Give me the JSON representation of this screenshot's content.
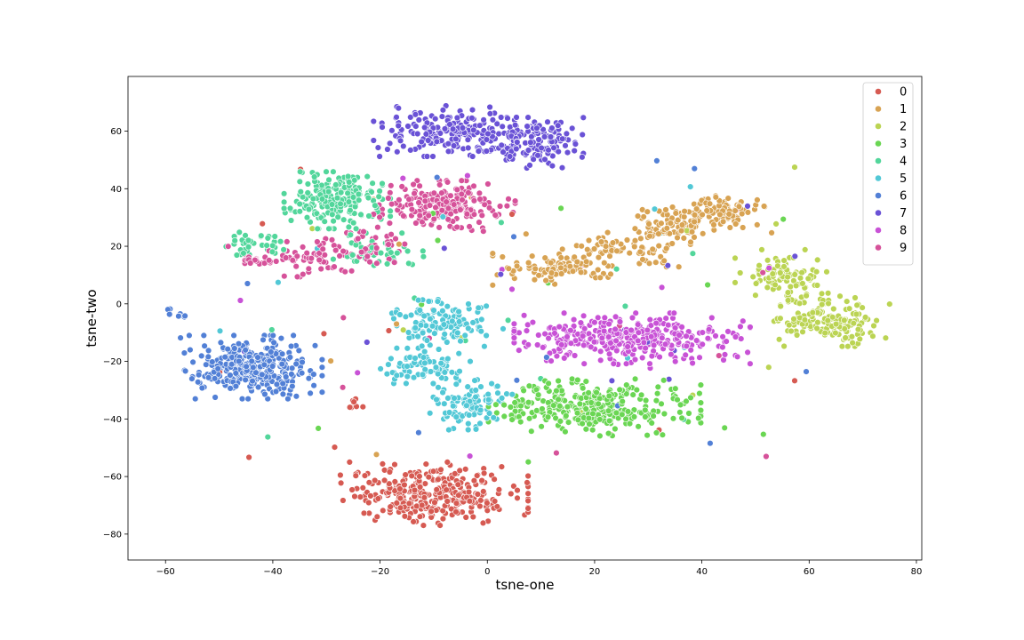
{
  "chart_data": {
    "type": "scatter",
    "title": "",
    "xlabel": "tsne-one",
    "ylabel": "tsne-two",
    "xlim": [
      -67,
      81
    ],
    "ylim": [
      -89,
      79
    ],
    "xticks": [
      -60,
      -40,
      -20,
      0,
      20,
      40,
      60,
      80
    ],
    "yticks": [
      -80,
      -60,
      -40,
      -20,
      0,
      20,
      40,
      60
    ],
    "grid": false,
    "legend_position": "top-right",
    "series": [
      {
        "name": "0",
        "color": "#d65a52",
        "clusters": [
          {
            "cx": -10,
            "cy": -66,
            "sx": 8,
            "sy": 5,
            "n": 340
          },
          {
            "cx": -25,
            "cy": -35,
            "sx": 1.2,
            "sy": 1.2,
            "n": 8
          }
        ]
      },
      {
        "name": "1",
        "color": "#d8a353",
        "clusters": [
          {
            "cx": 12,
            "cy": 12,
            "sx": 5,
            "sy": 2.5,
            "n": 90
          },
          {
            "cx": 25,
            "cy": 19,
            "sx": 5,
            "sy": 2.8,
            "n": 80
          },
          {
            "cx": 35,
            "cy": 27,
            "sx": 4,
            "sy": 3,
            "n": 80
          },
          {
            "cx": 44,
            "cy": 32,
            "sx": 3.5,
            "sy": 2.5,
            "n": 90
          }
        ]
      },
      {
        "name": "2",
        "color": "#bbd453",
        "clusters": [
          {
            "cx": 55,
            "cy": 10,
            "sx": 4,
            "sy": 4,
            "n": 90
          },
          {
            "cx": 64,
            "cy": -6,
            "sx": 5,
            "sy": 4,
            "n": 160
          }
        ]
      },
      {
        "name": "3",
        "color": "#6ad653",
        "clusters": [
          {
            "cx": 20,
            "cy": -36,
            "sx": 9,
            "sy": 4.5,
            "n": 330
          }
        ]
      },
      {
        "name": "4",
        "color": "#52d69b",
        "clusters": [
          {
            "cx": -28,
            "cy": 36,
            "sx": 4.5,
            "sy": 4.5,
            "n": 200
          },
          {
            "cx": -44,
            "cy": 21,
            "sx": 3,
            "sy": 2,
            "n": 40
          },
          {
            "cx": -20,
            "cy": 18,
            "sx": 4,
            "sy": 3,
            "n": 40
          }
        ]
      },
      {
        "name": "5",
        "color": "#52c8d6",
        "clusters": [
          {
            "cx": -9,
            "cy": -6,
            "sx": 4,
            "sy": 4,
            "n": 120
          },
          {
            "cx": -12,
            "cy": -22,
            "sx": 4,
            "sy": 3,
            "n": 80
          },
          {
            "cx": -3,
            "cy": -35,
            "sx": 3.5,
            "sy": 4,
            "n": 100
          }
        ]
      },
      {
        "name": "6",
        "color": "#5280d6",
        "clusters": [
          {
            "cx": -44,
            "cy": -22,
            "sx": 6,
            "sy": 5,
            "n": 330
          },
          {
            "cx": -58,
            "cy": -4,
            "sx": 1,
            "sy": 1,
            "n": 8
          }
        ]
      },
      {
        "name": "7",
        "color": "#6a52d6",
        "clusters": [
          {
            "cx": -8,
            "cy": 60,
            "sx": 6,
            "sy": 4,
            "n": 170
          },
          {
            "cx": 8,
            "cy": 56,
            "sx": 4.5,
            "sy": 4,
            "n": 170
          }
        ]
      },
      {
        "name": "8",
        "color": "#c852d6",
        "clusters": [
          {
            "cx": 27,
            "cy": -12,
            "sx": 10,
            "sy": 4,
            "n": 330
          }
        ]
      },
      {
        "name": "9",
        "color": "#d6529a",
        "clusters": [
          {
            "cx": -8,
            "cy": 34,
            "sx": 6,
            "sy": 4,
            "n": 200
          },
          {
            "cx": -33,
            "cy": 16,
            "sx": 3.5,
            "sy": 3,
            "n": 70
          },
          {
            "cx": -44,
            "cy": 15,
            "sx": 2,
            "sy": 1.3,
            "n": 20
          },
          {
            "cx": -22,
            "cy": 20,
            "sx": 3,
            "sy": 3,
            "n": 50
          }
        ]
      }
    ],
    "noise_points_per_series": 12
  }
}
